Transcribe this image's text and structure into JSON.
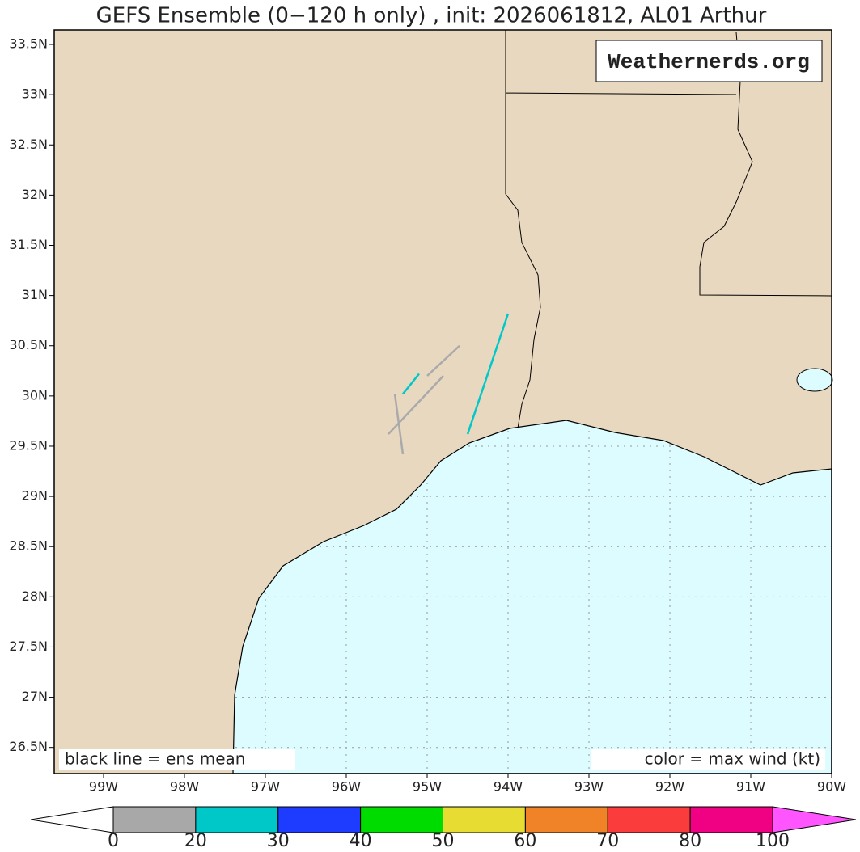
{
  "title": "GEFS Ensemble (0−120 h only) , init: 2026061812, AL01 Arthur",
  "watermark": "Weathernerds.org",
  "annotations": {
    "left": "black line = ens mean",
    "right": "color = max wind (kt)"
  },
  "xlim": [
    -99.61,
    -90
  ],
  "ylim": [
    26.24,
    33.645
  ],
  "lat_ticks": [
    {
      "value": 33.5,
      "label": "33.5N"
    },
    {
      "value": 33,
      "label": "33N"
    },
    {
      "value": 32.5,
      "label": "32.5N"
    },
    {
      "value": 32,
      "label": "32N"
    },
    {
      "value": 31.5,
      "label": "31.5N"
    },
    {
      "value": 31,
      "label": "31N"
    },
    {
      "value": 30.5,
      "label": "30.5N"
    },
    {
      "value": 30,
      "label": "30N"
    },
    {
      "value": 29.5,
      "label": "29.5N"
    },
    {
      "value": 29,
      "label": "29N"
    },
    {
      "value": 28.5,
      "label": "28.5N"
    },
    {
      "value": 28,
      "label": "28N"
    },
    {
      "value": 27.5,
      "label": "27.5N"
    },
    {
      "value": 27,
      "label": "27N"
    },
    {
      "value": 26.5,
      "label": "26.5N"
    }
  ],
  "lon_ticks": [
    {
      "value": -99,
      "label": "99W"
    },
    {
      "value": -98,
      "label": "98W"
    },
    {
      "value": -97,
      "label": "97W"
    },
    {
      "value": -96,
      "label": "96W"
    },
    {
      "value": -95,
      "label": "95W"
    },
    {
      "value": -94,
      "label": "94W"
    },
    {
      "value": -93,
      "label": "93W"
    },
    {
      "value": -92,
      "label": "92W"
    },
    {
      "value": -91,
      "label": "91W"
    },
    {
      "value": -90,
      "label": "90W"
    }
  ],
  "tracks": [
    {
      "color": "#aaaaaa",
      "lon": [
        -95.48,
        -94.8
      ],
      "lat": [
        29.62,
        30.2
      ]
    },
    {
      "color": "#aaaaaa",
      "lon": [
        -95.3,
        -95.4
      ],
      "lat": [
        29.42,
        30.02
      ]
    },
    {
      "color": "#aaaaaa",
      "lon": [
        -95.0,
        -94.6
      ],
      "lat": [
        30.2,
        30.5
      ]
    },
    {
      "color": "#00c8c8",
      "lon": [
        -95.3,
        -95.1
      ],
      "lat": [
        30.02,
        30.22
      ]
    },
    {
      "color": "#00c8c8",
      "lon": [
        -94.5,
        -94.0
      ],
      "lat": [
        29.62,
        30.82
      ]
    }
  ],
  "colorbar": {
    "bounds": [
      0,
      20,
      30,
      40,
      50,
      60,
      70,
      80,
      100
    ],
    "colors": [
      "#a8a8a8",
      "#00c8c8",
      "#1e3cff",
      "#00dc00",
      "#e6dc32",
      "#f08228",
      "#fa3c3c",
      "#f00082"
    ],
    "under_color": "#ffffff",
    "over_color": "#ff55ff"
  }
}
